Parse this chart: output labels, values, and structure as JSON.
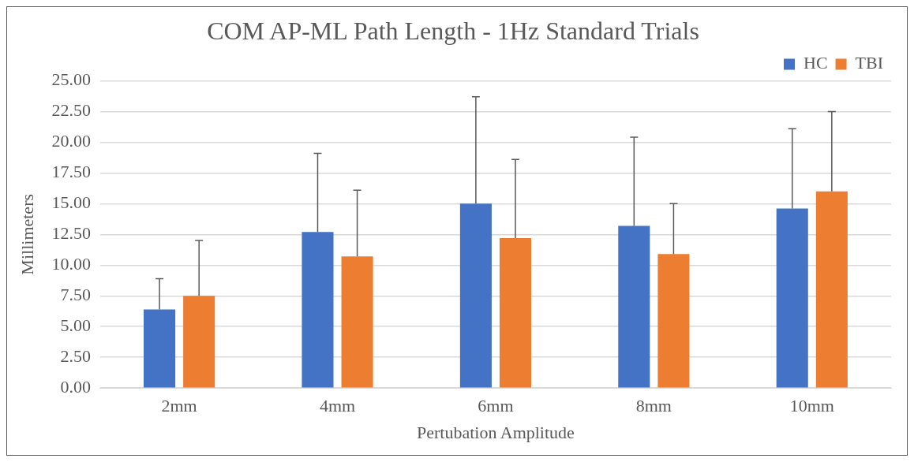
{
  "chart_data": {
    "type": "bar",
    "title": "COM AP-ML Path Length - 1Hz Standard Trials",
    "xlabel": "Pertubation Amplitude",
    "ylabel": "Millimeters",
    "categories": [
      "2mm",
      "4mm",
      "6mm",
      "8mm",
      "10mm"
    ],
    "series": [
      {
        "name": "HC",
        "color": "#4472c4",
        "values": [
          6.4,
          12.7,
          15.0,
          13.2,
          14.6
        ],
        "errors": [
          [
            6.4,
            8.9
          ],
          [
            12.7,
            19.1
          ],
          [
            15.0,
            23.7
          ],
          [
            13.2,
            20.4
          ],
          [
            14.6,
            21.1
          ]
        ]
      },
      {
        "name": "TBI",
        "color": "#ed7d31",
        "values": [
          7.5,
          10.7,
          12.2,
          10.9,
          16.0
        ],
        "errors": [
          [
            7.5,
            12.0
          ],
          [
            10.7,
            16.1
          ],
          [
            12.2,
            18.6
          ],
          [
            10.9,
            15.0
          ],
          [
            16.0,
            22.5
          ]
        ]
      }
    ],
    "ylim": [
      0,
      25
    ],
    "yticks": [
      {
        "value": 0,
        "label": "0.00"
      },
      {
        "value": 2.5,
        "label": "2.50"
      },
      {
        "value": 5,
        "label": "5.00"
      },
      {
        "value": 7.5,
        "label": "7.50"
      },
      {
        "value": 10,
        "label": "10.00"
      },
      {
        "value": 12.5,
        "label": "12.50"
      },
      {
        "value": 15,
        "label": "15.00"
      },
      {
        "value": 17.5,
        "label": "17.50"
      },
      {
        "value": 20,
        "label": "20.00"
      },
      {
        "value": 22.5,
        "label": "22.50"
      },
      {
        "value": 25,
        "label": "25.00"
      }
    ],
    "grid": "y",
    "legend": "top right"
  }
}
